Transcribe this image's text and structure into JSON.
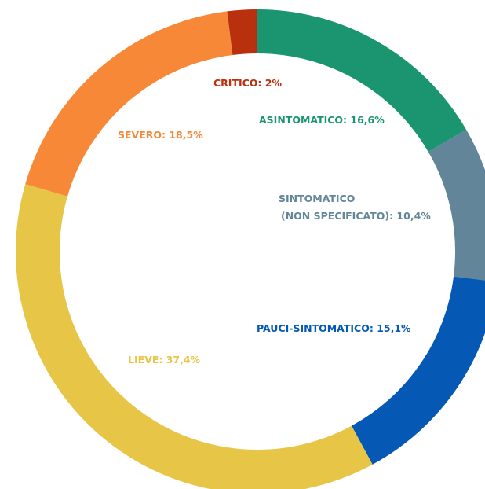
{
  "chart_data": {
    "type": "donut",
    "values": [
      16.6,
      10.4,
      15.1,
      37.4,
      18.5,
      2
    ],
    "value_labels": [
      [
        "ASINTOMATICO: 16,6%"
      ],
      [
        "SINTOMATICO",
        "(NON SPECIFICATO): 10,4%"
      ],
      [
        "PAUCI-SINTOMATICO: 15,1%"
      ],
      [
        "LIEVE: 37,4%"
      ],
      [
        "SEVERO: 18,5%"
      ],
      [
        "CRITICO: 2%"
      ]
    ],
    "colors": [
      "#1a9570",
      "#62859a",
      "#0559b5",
      "#e7c547",
      "#f68837",
      "#b9300f"
    ]
  }
}
